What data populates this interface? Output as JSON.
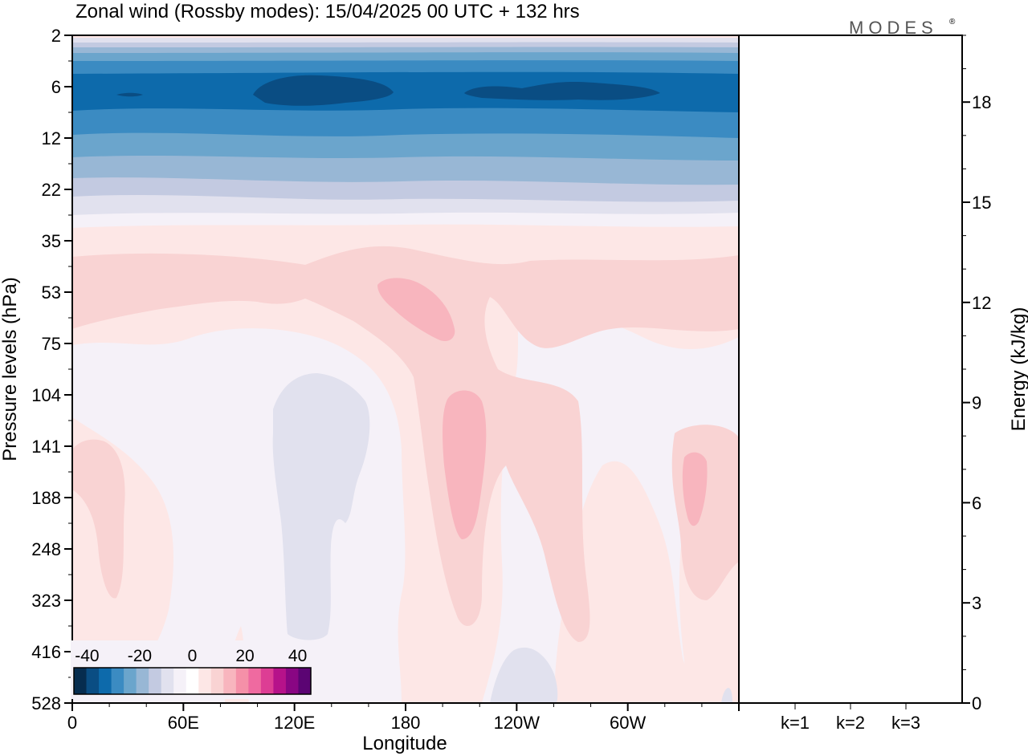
{
  "chart_data": {
    "type": "heatmap",
    "title": "Zonal wind (Rossby modes):  15/04/2025  00 UTC  + 132 hrs",
    "logo": "MODES",
    "logo_mark": "®",
    "xlabel": "Longitude",
    "ylabel": "Pressure levels (hPa)",
    "y2label": "Energy (kJ/kg)",
    "x_ticks": [
      "0",
      "60E",
      "120E",
      "180",
      "120W",
      "60W"
    ],
    "x_tick_values": [
      0,
      60,
      120,
      180,
      240,
      300
    ],
    "x_range": [
      0,
      360
    ],
    "y_ticks": [
      "2",
      "6",
      "12",
      "22",
      "35",
      "53",
      "75",
      "104",
      "141",
      "188",
      "248",
      "323",
      "416",
      "528"
    ],
    "y2_ticks": [
      "0",
      "3",
      "6",
      "9",
      "12",
      "15",
      "18"
    ],
    "y2_range": [
      0,
      20
    ],
    "energy_bars": [
      {
        "label": "k=1",
        "value": 0.0
      },
      {
        "label": "k=2",
        "value": 0.0
      },
      {
        "label": "k=3",
        "value": 0.0
      }
    ],
    "colorbar": {
      "ticks": [
        "-40",
        "-20",
        "0",
        "20",
        "40"
      ],
      "tick_values": [
        -40,
        -20,
        0,
        20,
        40
      ],
      "range": [
        -45,
        45
      ],
      "colors": [
        "#062c4f",
        "#0a4d83",
        "#0d6aab",
        "#3b8bc2",
        "#6ba5cc",
        "#98b7d5",
        "#c3cae1",
        "#e1e1ee",
        "#f5f1f8",
        "#ffffff",
        "#fde7e6",
        "#f9d3d3",
        "#f8b5be",
        "#f590a8",
        "#ef6aa0",
        "#dd3d94",
        "#b6128a",
        "#890683",
        "#5b0473"
      ]
    },
    "level_colors": [
      "#ffffff",
      "#fde7e6",
      "#f9d3d3",
      "#f8b5be",
      "#f5f1f8",
      "#e1e1ee",
      "#c3cae1",
      "#98b7d5",
      "#6ba5cc",
      "#3b8bc2",
      "#0d6aab",
      "#0a4d83"
    ]
  }
}
